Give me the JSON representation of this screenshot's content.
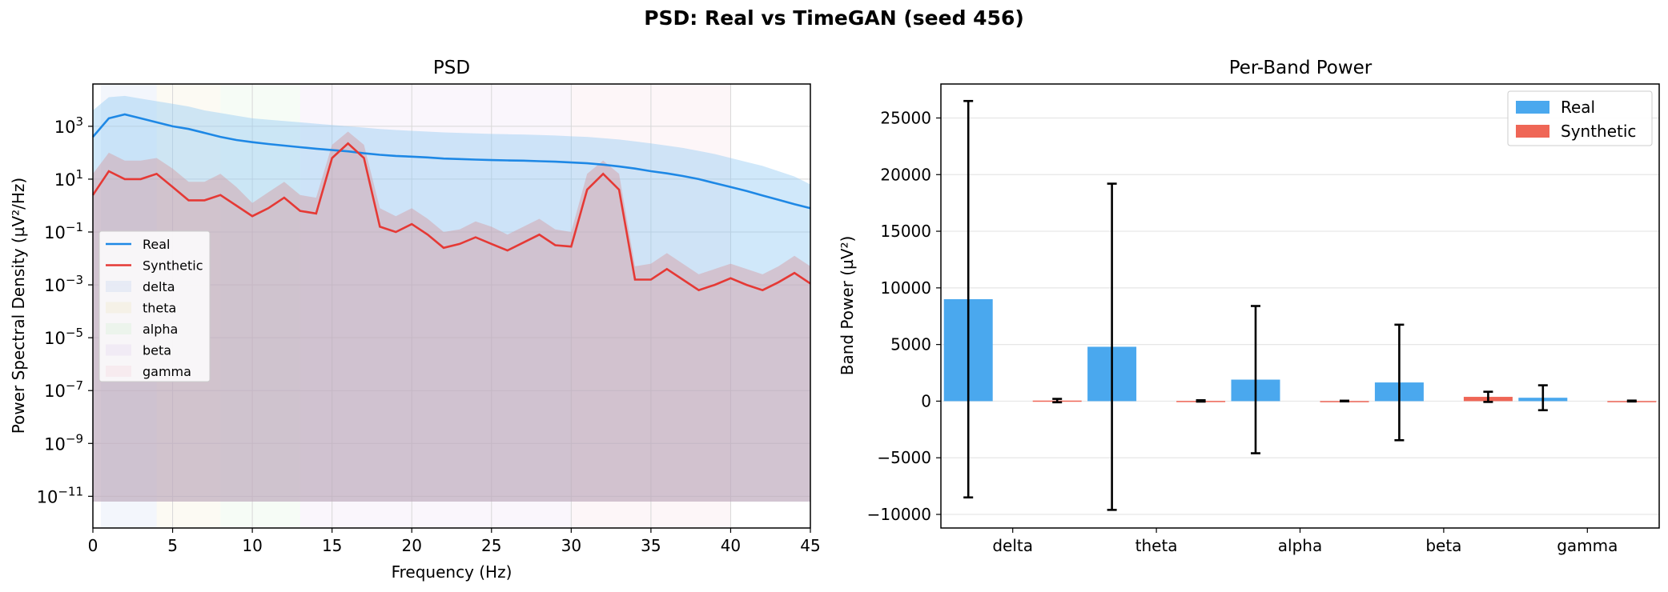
{
  "figure_title": "PSD: Real vs TimeGAN (seed 456)",
  "colors": {
    "real": "#1e88e5",
    "synthetic": "#e53935",
    "real_bar": "#4aa8ee",
    "synthetic_bar": "#ef6656",
    "grid": "#e6e6e6"
  },
  "chart_data": [
    {
      "type": "line",
      "title": "PSD",
      "xlabel": "Frequency (Hz)",
      "ylabel": "Power Spectral Density (µV²/Hz)",
      "xlim": [
        0,
        45
      ],
      "ylim_log10": [
        -12.2,
        4.6
      ],
      "yscale": "log",
      "grid": true,
      "legend_position": "center-left",
      "x_ticks": [
        "0",
        "5",
        "10",
        "15",
        "20",
        "25",
        "30",
        "35",
        "40",
        "45"
      ],
      "y_ticks": [
        {
          "base": "10",
          "exp": "3"
        },
        {
          "base": "10",
          "exp": "1"
        },
        {
          "base": "10",
          "exp": "−1"
        },
        {
          "base": "10",
          "exp": "−3"
        },
        {
          "base": "10",
          "exp": "−5"
        },
        {
          "base": "10",
          "exp": "−7"
        },
        {
          "base": "10",
          "exp": "−9"
        },
        {
          "base": "10",
          "exp": "−11"
        }
      ],
      "bands": [
        {
          "name": "delta",
          "range": [
            0.5,
            4
          ],
          "color": "#c8d7f2"
        },
        {
          "name": "theta",
          "range": [
            4,
            8
          ],
          "color": "#f2e8c8"
        },
        {
          "name": "alpha",
          "range": [
            8,
            13
          ],
          "color": "#d7f0d7"
        },
        {
          "name": "beta",
          "range": [
            13,
            30
          ],
          "color": "#e6d7f0"
        },
        {
          "name": "gamma",
          "range": [
            30,
            40
          ],
          "color": "#f5d7e0"
        }
      ],
      "x": [
        0,
        1,
        2,
        3,
        4,
        5,
        6,
        7,
        8,
        9,
        10,
        11,
        12,
        13,
        14,
        15,
        16,
        17,
        18,
        19,
        20,
        21,
        22,
        23,
        24,
        25,
        26,
        27,
        28,
        29,
        30,
        31,
        32,
        33,
        34,
        35,
        36,
        37,
        38,
        39,
        40,
        41,
        42,
        43,
        44,
        45
      ],
      "series": [
        {
          "name": "Real",
          "mean_log10": [
            2.6,
            3.3,
            3.45,
            3.3,
            3.15,
            3.0,
            2.9,
            2.75,
            2.6,
            2.48,
            2.4,
            2.33,
            2.27,
            2.21,
            2.15,
            2.1,
            2.05,
            1.98,
            1.92,
            1.88,
            1.85,
            1.82,
            1.78,
            1.76,
            1.74,
            1.72,
            1.71,
            1.7,
            1.68,
            1.66,
            1.63,
            1.6,
            1.55,
            1.48,
            1.4,
            1.3,
            1.22,
            1.12,
            1.0,
            0.85,
            0.7,
            0.55,
            0.38,
            0.22,
            0.05,
            -0.1
          ],
          "upper_log10": [
            3.6,
            4.1,
            4.15,
            4.05,
            3.95,
            3.85,
            3.75,
            3.6,
            3.5,
            3.4,
            3.3,
            3.25,
            3.2,
            3.15,
            3.1,
            3.05,
            3.0,
            2.95,
            2.9,
            2.86,
            2.83,
            2.8,
            2.77,
            2.75,
            2.73,
            2.71,
            2.7,
            2.69,
            2.67,
            2.65,
            2.62,
            2.6,
            2.55,
            2.5,
            2.43,
            2.35,
            2.27,
            2.18,
            2.07,
            1.95,
            1.8,
            1.65,
            1.5,
            1.3,
            1.1,
            0.8
          ],
          "lower_log10": [
            -11.2,
            -11.2,
            -11.2,
            -11.2,
            -11.2,
            -11.2,
            -11.2,
            -11.2,
            -11.2,
            -11.2,
            -11.2,
            -11.2,
            -11.2,
            -11.2,
            -11.2,
            -11.2,
            -11.2,
            -11.2,
            -11.2,
            -11.2,
            -11.2,
            -11.2,
            -11.2,
            -11.2,
            -11.2,
            -11.2,
            -11.2,
            -11.2,
            -11.2,
            -11.2,
            -11.2,
            -11.2,
            -11.2,
            -11.2,
            -11.2,
            -11.2,
            -11.2,
            -11.2,
            -11.2,
            -11.2,
            -11.2,
            -11.2,
            -11.2,
            -11.2,
            -11.2,
            -11.2
          ]
        },
        {
          "name": "Synthetic",
          "mean_log10": [
            0.4,
            1.3,
            1.0,
            1.0,
            1.2,
            0.7,
            0.2,
            0.2,
            0.4,
            0.0,
            -0.4,
            -0.1,
            0.3,
            -0.2,
            -0.3,
            1.8,
            2.35,
            1.8,
            -0.8,
            -1.0,
            -0.7,
            -1.1,
            -1.6,
            -1.45,
            -1.2,
            -1.45,
            -1.7,
            -1.4,
            -1.1,
            -1.5,
            -1.55,
            0.6,
            1.2,
            0.6,
            -2.8,
            -2.8,
            -2.4,
            -2.8,
            -3.2,
            -3.0,
            -2.75,
            -3.0,
            -3.2,
            -2.9,
            -2.55,
            -2.95
          ],
          "upper_log10": [
            1.2,
            2.0,
            1.7,
            1.7,
            1.8,
            1.4,
            0.9,
            0.9,
            1.2,
            0.7,
            0.1,
            0.5,
            0.9,
            0.4,
            0.3,
            2.3,
            2.8,
            2.3,
            -0.1,
            -0.4,
            -0.1,
            -0.5,
            -1.0,
            -0.9,
            -0.6,
            -0.8,
            -1.1,
            -0.8,
            -0.5,
            -0.9,
            -1.0,
            1.2,
            1.7,
            1.2,
            -2.3,
            -2.2,
            -1.8,
            -2.2,
            -2.6,
            -2.4,
            -2.2,
            -2.4,
            -2.6,
            -2.3,
            -1.9,
            -2.3
          ],
          "lower_log10": [
            -11.2,
            -11.2,
            -11.2,
            -11.2,
            -11.2,
            -11.2,
            -11.2,
            -11.2,
            -11.2,
            -11.2,
            -11.2,
            -11.2,
            -11.2,
            -11.2,
            -11.2,
            -11.2,
            -11.2,
            -11.2,
            -11.2,
            -11.2,
            -11.2,
            -11.2,
            -11.2,
            -11.2,
            -11.2,
            -11.2,
            -11.2,
            -11.2,
            -11.2,
            -11.2,
            -11.2,
            -11.2,
            -11.2,
            -11.2,
            -11.2,
            -11.2,
            -11.2,
            -11.2,
            -11.2,
            -11.2,
            -11.2,
            -11.2,
            -11.2,
            -11.2,
            -11.2,
            -11.2
          ]
        }
      ],
      "legend": [
        "Real",
        "Synthetic",
        "delta",
        "theta",
        "alpha",
        "beta",
        "gamma"
      ]
    },
    {
      "type": "bar",
      "title": "Per-Band Power",
      "xlabel": "",
      "ylabel": "Band Power (µV²)",
      "ylim": [
        -11200,
        28000
      ],
      "grid": true,
      "legend_position": "top-right",
      "y_ticks": [
        "25000",
        "20000",
        "15000",
        "10000",
        "5000",
        "0",
        "−5000",
        "−10000"
      ],
      "y_tick_values": [
        25000,
        20000,
        15000,
        10000,
        5000,
        0,
        -5000,
        -10000
      ],
      "categories": [
        "delta",
        "theta",
        "alpha",
        "beta",
        "gamma"
      ],
      "series": [
        {
          "name": "Real",
          "values": [
            9000,
            4800,
            1900,
            1650,
            300
          ],
          "error": [
            17500,
            14400,
            6500,
            5100,
            1100
          ]
        },
        {
          "name": "Synthetic",
          "values": [
            50,
            20,
            10,
            380,
            10
          ],
          "error": [
            150,
            60,
            30,
            450,
            40
          ]
        }
      ]
    }
  ]
}
